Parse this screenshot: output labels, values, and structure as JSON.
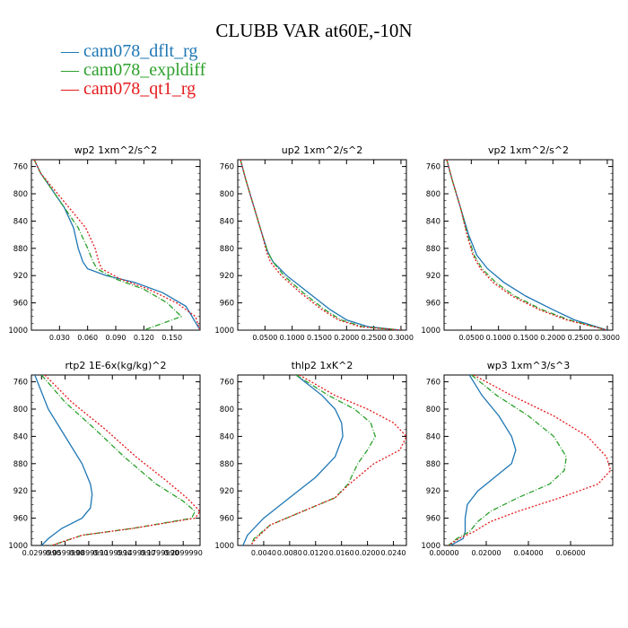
{
  "title": "CLUBB VAR at60E,-10N",
  "colors": {
    "blue": "#1f77b4",
    "green": "#2ca02c",
    "red": "#e41a1c"
  },
  "legend": [
    {
      "label": "cam078_dflt_rg",
      "color": "#1f77b4"
    },
    {
      "label": "cam078_expldiff",
      "color": "#2ca02c"
    },
    {
      "label": "cam078_qt1_rg",
      "color": "#e41a1c"
    }
  ],
  "chart_data": [
    {
      "type": "line",
      "title": "wp2  1xm^2/s^2",
      "ylim": [
        1000,
        750
      ],
      "yticks": [
        "760",
        "800",
        "840",
        "880",
        "920",
        "960",
        "1000"
      ],
      "xlim": [
        0.0,
        0.18
      ],
      "xticks": [
        {
          "v": 0.03,
          "label": "0.030"
        },
        {
          "v": 0.06,
          "label": "0.060"
        },
        {
          "v": 0.09,
          "label": "0.090"
        },
        {
          "v": 0.12,
          "label": "0.120"
        },
        {
          "v": 0.15,
          "label": "0.150"
        }
      ],
      "series": [
        {
          "name": "cam078_dflt_rg",
          "x": [
            0.003,
            0.01,
            0.02,
            0.035,
            0.045,
            0.05,
            0.055,
            0.06,
            0.08,
            0.11,
            0.14,
            0.165,
            0.18
          ],
          "y": [
            750,
            770,
            790,
            820,
            850,
            880,
            900,
            910,
            920,
            930,
            945,
            965,
            1000
          ]
        },
        {
          "name": "cam078_expldiff",
          "x": [
            0.003,
            0.01,
            0.02,
            0.035,
            0.05,
            0.06,
            0.066,
            0.07,
            0.09,
            0.12,
            0.145,
            0.16,
            0.12
          ],
          "y": [
            750,
            770,
            790,
            820,
            850,
            880,
            900,
            910,
            925,
            940,
            960,
            980,
            1000
          ]
        },
        {
          "name": "cam078_qt1_rg",
          "x": [
            0.003,
            0.01,
            0.022,
            0.04,
            0.058,
            0.068,
            0.072,
            0.075,
            0.095,
            0.125,
            0.155,
            0.175,
            0.18
          ],
          "y": [
            750,
            770,
            790,
            820,
            850,
            880,
            900,
            910,
            925,
            940,
            960,
            980,
            1000
          ]
        }
      ]
    },
    {
      "type": "line",
      "title": "up2  1xm^2/s^2",
      "ylim": [
        1000,
        750
      ],
      "yticks": [
        "760",
        "800",
        "840",
        "880",
        "920",
        "960",
        "1000"
      ],
      "xlim": [
        0.0,
        0.31
      ],
      "xticks": [
        {
          "v": 0.05,
          "label": "0.0500"
        },
        {
          "v": 0.1,
          "label": "0.1000"
        },
        {
          "v": 0.15,
          "label": "0.1500"
        },
        {
          "v": 0.2,
          "label": "0.2000"
        },
        {
          "v": 0.25,
          "label": "0.2500"
        },
        {
          "v": 0.3,
          "label": "0.3000"
        }
      ],
      "series": [
        {
          "name": "cam078_dflt_rg",
          "x": [
            0.005,
            0.015,
            0.03,
            0.045,
            0.055,
            0.065,
            0.09,
            0.13,
            0.17,
            0.2,
            0.24,
            0.3
          ],
          "y": [
            750,
            780,
            820,
            860,
            885,
            900,
            920,
            945,
            970,
            985,
            995,
            1000
          ]
        },
        {
          "name": "cam078_expldiff",
          "x": [
            0.005,
            0.015,
            0.03,
            0.045,
            0.055,
            0.065,
            0.085,
            0.12,
            0.16,
            0.19,
            0.23,
            0.3
          ],
          "y": [
            750,
            780,
            820,
            860,
            885,
            900,
            920,
            945,
            970,
            985,
            995,
            1000
          ]
        },
        {
          "name": "cam078_qt1_rg",
          "x": [
            0.005,
            0.015,
            0.03,
            0.045,
            0.053,
            0.06,
            0.08,
            0.115,
            0.155,
            0.185,
            0.225,
            0.3
          ],
          "y": [
            750,
            780,
            820,
            860,
            885,
            900,
            920,
            945,
            970,
            985,
            995,
            1000
          ]
        }
      ]
    },
    {
      "type": "line",
      "title": "vp2  1xm^2/s^2",
      "ylim": [
        1000,
        750
      ],
      "yticks": [
        "760",
        "800",
        "840",
        "880",
        "920",
        "960",
        "1000"
      ],
      "xlim": [
        0.0,
        0.31
      ],
      "xticks": [
        {
          "v": 0.05,
          "label": "0.0500"
        },
        {
          "v": 0.1,
          "label": "0.1000"
        },
        {
          "v": 0.15,
          "label": "0.1500"
        },
        {
          "v": 0.2,
          "label": "0.2000"
        },
        {
          "v": 0.25,
          "label": "0.2500"
        },
        {
          "v": 0.3,
          "label": "0.3000"
        }
      ],
      "series": [
        {
          "name": "cam078_dflt_rg",
          "x": [
            0.005,
            0.015,
            0.03,
            0.045,
            0.06,
            0.08,
            0.11,
            0.15,
            0.2,
            0.24,
            0.3
          ],
          "y": [
            750,
            780,
            820,
            860,
            890,
            910,
            930,
            950,
            970,
            985,
            1000
          ]
        },
        {
          "name": "cam078_expldiff",
          "x": [
            0.005,
            0.015,
            0.03,
            0.043,
            0.055,
            0.07,
            0.095,
            0.13,
            0.18,
            0.23,
            0.3
          ],
          "y": [
            750,
            780,
            820,
            860,
            890,
            910,
            930,
            950,
            970,
            985,
            1000
          ]
        },
        {
          "name": "cam078_qt1_rg",
          "x": [
            0.005,
            0.015,
            0.03,
            0.042,
            0.053,
            0.067,
            0.09,
            0.125,
            0.175,
            0.225,
            0.3
          ],
          "y": [
            750,
            780,
            820,
            860,
            890,
            910,
            930,
            950,
            970,
            985,
            1000
          ]
        }
      ]
    },
    {
      "type": "line",
      "title": "rtp2  1E-6x(kg/kg)^2",
      "ylim": [
        1000,
        750
      ],
      "yticks": [
        "760",
        "800",
        "840",
        "880",
        "920",
        "960",
        "1000"
      ],
      "xlim": [
        0.0,
        1.0
      ],
      "xticks": [
        {
          "v": 0.06,
          "label": "0.0299990"
        },
        {
          "v": 0.2,
          "label": "0.0599990"
        },
        {
          "v": 0.34,
          "label": "0.0899990"
        },
        {
          "v": 0.48,
          "label": "0.1199990"
        },
        {
          "v": 0.62,
          "label": "0.1499990"
        },
        {
          "v": 0.76,
          "label": "0.1799990"
        },
        {
          "v": 0.9,
          "label": "0.2099990"
        }
      ],
      "series": [
        {
          "name": "cam078_dflt_rg",
          "x": [
            0.02,
            0.1,
            0.2,
            0.3,
            0.35,
            0.36,
            0.35,
            0.3,
            0.18,
            0.1,
            0.06
          ],
          "y": [
            750,
            800,
            840,
            880,
            910,
            925,
            945,
            960,
            975,
            990,
            1000
          ]
        },
        {
          "name": "cam078_expldiff",
          "x": [
            0.06,
            0.2,
            0.38,
            0.55,
            0.74,
            0.9,
            0.97,
            0.95,
            0.6,
            0.3,
            0.12
          ],
          "y": [
            750,
            790,
            830,
            870,
            910,
            935,
            950,
            960,
            975,
            985,
            1000
          ]
        },
        {
          "name": "cam078_qt1_rg",
          "x": [
            0.08,
            0.24,
            0.44,
            0.62,
            0.8,
            0.92,
            1.0,
            0.97,
            0.6,
            0.3,
            0.12
          ],
          "y": [
            750,
            790,
            830,
            870,
            905,
            930,
            950,
            960,
            975,
            985,
            1000
          ]
        }
      ]
    },
    {
      "type": "line",
      "title": "thlp2  1xK^2",
      "ylim": [
        1000,
        750
      ],
      "yticks": [
        "760",
        "800",
        "840",
        "880",
        "920",
        "960",
        "1000"
      ],
      "xlim": [
        0.0,
        0.026
      ],
      "xticks": [
        {
          "v": 0.004,
          "label": "0.0040"
        },
        {
          "v": 0.008,
          "label": "0.0080"
        },
        {
          "v": 0.012,
          "label": "0.0120"
        },
        {
          "v": 0.016,
          "label": "0.0160"
        },
        {
          "v": 0.02,
          "label": "0.0200"
        },
        {
          "v": 0.024,
          "label": "0.0240"
        }
      ],
      "series": [
        {
          "name": "cam078_dflt_rg",
          "x": [
            0.009,
            0.013,
            0.015,
            0.016,
            0.0162,
            0.015,
            0.012,
            0.008,
            0.004,
            0.0015,
            0.0008
          ],
          "y": [
            750,
            780,
            800,
            820,
            840,
            870,
            900,
            930,
            960,
            985,
            1000
          ]
        },
        {
          "name": "cam078_expldiff",
          "x": [
            0.009,
            0.014,
            0.018,
            0.0205,
            0.0212,
            0.02,
            0.0185,
            0.017,
            0.015,
            0.01,
            0.005,
            0.0025,
            0.002
          ],
          "y": [
            750,
            780,
            800,
            820,
            840,
            860,
            880,
            910,
            930,
            950,
            970,
            990,
            1000
          ]
        },
        {
          "name": "cam078_qt1_rg",
          "x": [
            0.0095,
            0.015,
            0.02,
            0.024,
            0.026,
            0.025,
            0.021,
            0.0172,
            0.015,
            0.01,
            0.005,
            0.0028,
            0.002
          ],
          "y": [
            750,
            780,
            800,
            820,
            840,
            860,
            880,
            910,
            930,
            950,
            970,
            990,
            1000
          ]
        }
      ]
    },
    {
      "type": "line",
      "title": "wp3  1xm^3/s^3",
      "ylim": [
        1000,
        750
      ],
      "yticks": [
        "760",
        "800",
        "840",
        "880",
        "920",
        "960",
        "1000"
      ],
      "xlim": [
        0.0,
        0.08
      ],
      "xticks": [
        {
          "v": 0.0,
          "label": "0.00000"
        },
        {
          "v": 0.02,
          "label": "0.02000"
        },
        {
          "v": 0.04,
          "label": "0.04000"
        },
        {
          "v": 0.06,
          "label": "0.06000"
        }
      ],
      "series": [
        {
          "name": "cam078_dflt_rg",
          "x": [
            0.012,
            0.018,
            0.026,
            0.032,
            0.034,
            0.032,
            0.024,
            0.016,
            0.011,
            0.01,
            0.01,
            0.009,
            0.003
          ],
          "y": [
            750,
            780,
            810,
            840,
            860,
            880,
            900,
            920,
            940,
            960,
            980,
            990,
            1000
          ]
        },
        {
          "name": "cam078_expldiff",
          "x": [
            0.013,
            0.025,
            0.04,
            0.052,
            0.058,
            0.057,
            0.05,
            0.035,
            0.022,
            0.016,
            0.012,
            0.006,
            0.002
          ],
          "y": [
            750,
            780,
            810,
            840,
            870,
            890,
            910,
            930,
            950,
            965,
            980,
            990,
            1000
          ]
        },
        {
          "name": "cam078_qt1_rg",
          "x": [
            0.014,
            0.032,
            0.052,
            0.068,
            0.077,
            0.079,
            0.073,
            0.055,
            0.035,
            0.022,
            0.014,
            0.007,
            0.002
          ],
          "y": [
            750,
            780,
            810,
            840,
            870,
            890,
            910,
            930,
            950,
            965,
            980,
            990,
            1000
          ]
        }
      ]
    }
  ]
}
